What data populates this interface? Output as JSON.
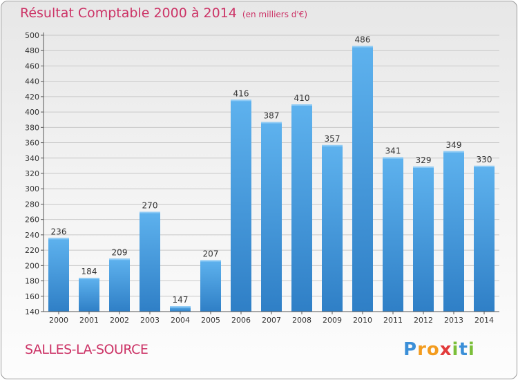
{
  "chart_data": {
    "type": "bar",
    "title": "Résultat Comptable 2000 à 2014",
    "subtitle": "(en milliers d'€)",
    "categories": [
      "2000",
      "2001",
      "2002",
      "2003",
      "2004",
      "2005",
      "2006",
      "2007",
      "2008",
      "2009",
      "2010",
      "2011",
      "2012",
      "2013",
      "2014"
    ],
    "values": [
      236,
      184,
      209,
      270,
      147,
      207,
      416,
      387,
      410,
      357,
      486,
      341,
      329,
      349,
      330
    ],
    "ylim": [
      140,
      500
    ],
    "yticks": [
      140,
      160,
      180,
      200,
      220,
      240,
      260,
      280,
      300,
      320,
      340,
      360,
      380,
      400,
      420,
      440,
      460,
      480,
      500
    ],
    "xlabel": "",
    "ylabel": "",
    "grid": true,
    "bar_color": "#4a9fe0"
  },
  "location": "SALLES-LA-SOURCE",
  "logo": {
    "text": "Proxiti",
    "letters": [
      "P",
      "r",
      "o",
      "x",
      "i",
      "t",
      "i"
    ],
    "colors": [
      "#3b8fd8",
      "#f39c1f",
      "#f39c1f",
      "#e23b3b",
      "#7bbf3a",
      "#3b8fd8",
      "#7bbf3a"
    ]
  }
}
